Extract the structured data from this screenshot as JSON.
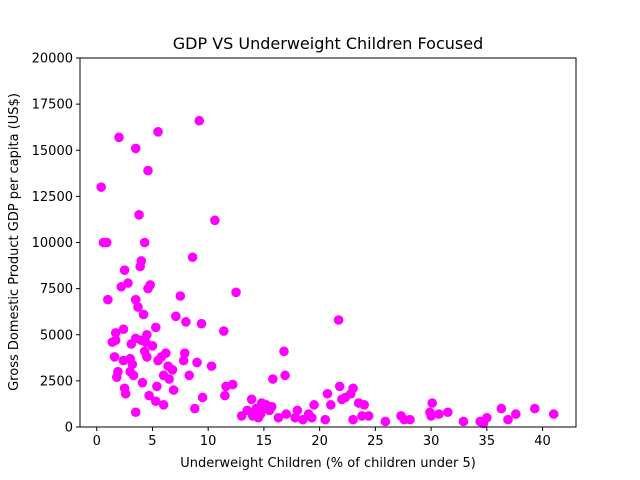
{
  "chart_data": {
    "type": "scatter",
    "title": "GDP VS Underweight Children Focused",
    "xlabel": "Underweight Children (% of children under 5)",
    "ylabel": "Gross Domestic Product GDP per capita (US$)",
    "xlim": [
      -1.5,
      43
    ],
    "ylim": [
      0,
      20000
    ],
    "xticks": [
      0,
      5,
      10,
      15,
      20,
      25,
      30,
      35,
      40
    ],
    "yticks": [
      0,
      2500,
      5000,
      7500,
      10000,
      12500,
      15000,
      17500,
      20000
    ],
    "xtick_labels": [
      "0",
      "5",
      "10",
      "15",
      "20",
      "25",
      "30",
      "35",
      "40"
    ],
    "ytick_labels": [
      "0",
      "2500",
      "5000",
      "7500",
      "10000",
      "12500",
      "15000",
      "17500",
      "20000"
    ],
    "marker_color": "#ff00ff",
    "grid": false,
    "points": [
      [
        0.4,
        13000
      ],
      [
        0.6,
        10000
      ],
      [
        0.9,
        10000
      ],
      [
        1.0,
        6900
      ],
      [
        1.4,
        4600
      ],
      [
        1.6,
        3800
      ],
      [
        1.7,
        5100
      ],
      [
        1.7,
        4700
      ],
      [
        1.8,
        2700
      ],
      [
        1.9,
        3000
      ],
      [
        2.0,
        15700
      ],
      [
        2.2,
        7600
      ],
      [
        2.4,
        5300
      ],
      [
        2.4,
        3600
      ],
      [
        2.5,
        8500
      ],
      [
        2.5,
        2100
      ],
      [
        2.6,
        1800
      ],
      [
        2.8,
        7800
      ],
      [
        3.0,
        3700
      ],
      [
        3.0,
        3000
      ],
      [
        3.1,
        4500
      ],
      [
        3.2,
        3400
      ],
      [
        3.3,
        2800
      ],
      [
        3.5,
        15100
      ],
      [
        3.5,
        6900
      ],
      [
        3.5,
        4800
      ],
      [
        3.5,
        800
      ],
      [
        3.7,
        6500
      ],
      [
        3.8,
        11500
      ],
      [
        3.9,
        8700
      ],
      [
        4.0,
        9000
      ],
      [
        4.0,
        4700
      ],
      [
        4.1,
        2400
      ],
      [
        4.2,
        6100
      ],
      [
        4.3,
        10000
      ],
      [
        4.3,
        4100
      ],
      [
        4.4,
        4600
      ],
      [
        4.5,
        5000
      ],
      [
        4.5,
        3800
      ],
      [
        4.6,
        13900
      ],
      [
        4.6,
        7500
      ],
      [
        4.7,
        1700
      ],
      [
        4.8,
        7700
      ],
      [
        5.0,
        4400
      ],
      [
        5.3,
        5400
      ],
      [
        5.3,
        1400
      ],
      [
        5.4,
        2200
      ],
      [
        5.5,
        16000
      ],
      [
        5.5,
        3600
      ],
      [
        5.8,
        3800
      ],
      [
        6.0,
        2800
      ],
      [
        6.0,
        1200
      ],
      [
        6.2,
        4000
      ],
      [
        6.4,
        3300
      ],
      [
        6.5,
        2600
      ],
      [
        6.8,
        3100
      ],
      [
        6.9,
        2000
      ],
      [
        7.1,
        6000
      ],
      [
        7.5,
        7100
      ],
      [
        7.8,
        3600
      ],
      [
        7.9,
        4000
      ],
      [
        8.0,
        5700
      ],
      [
        8.3,
        2800
      ],
      [
        8.6,
        9200
      ],
      [
        8.8,
        1000
      ],
      [
        9.0,
        3500
      ],
      [
        9.2,
        16600
      ],
      [
        9.4,
        5600
      ],
      [
        9.5,
        1600
      ],
      [
        10.3,
        3300
      ],
      [
        10.6,
        11200
      ],
      [
        11.4,
        5200
      ],
      [
        11.5,
        1700
      ],
      [
        11.6,
        2200
      ],
      [
        12.2,
        2300
      ],
      [
        12.5,
        7300
      ],
      [
        13.0,
        600
      ],
      [
        13.5,
        900
      ],
      [
        13.9,
        1500
      ],
      [
        14.0,
        600
      ],
      [
        14.3,
        1000
      ],
      [
        14.5,
        500
      ],
      [
        14.7,
        700
      ],
      [
        14.8,
        1300
      ],
      [
        15.0,
        1000
      ],
      [
        15.2,
        1200
      ],
      [
        15.5,
        900
      ],
      [
        15.7,
        1100
      ],
      [
        15.8,
        2600
      ],
      [
        16.3,
        500
      ],
      [
        16.8,
        4100
      ],
      [
        16.9,
        2800
      ],
      [
        17.0,
        700
      ],
      [
        17.8,
        500
      ],
      [
        18.0,
        900
      ],
      [
        18.5,
        400
      ],
      [
        19.0,
        700
      ],
      [
        19.3,
        500
      ],
      [
        19.5,
        1200
      ],
      [
        20.5,
        400
      ],
      [
        20.7,
        1800
      ],
      [
        21.0,
        1200
      ],
      [
        21.7,
        5800
      ],
      [
        21.8,
        2200
      ],
      [
        22.0,
        1500
      ],
      [
        22.3,
        1600
      ],
      [
        22.8,
        1800
      ],
      [
        23.0,
        2100
      ],
      [
        23.0,
        400
      ],
      [
        23.5,
        1300
      ],
      [
        23.8,
        600
      ],
      [
        24.0,
        1200
      ],
      [
        24.4,
        600
      ],
      [
        25.9,
        300
      ],
      [
        27.3,
        600
      ],
      [
        27.6,
        400
      ],
      [
        28.1,
        400
      ],
      [
        29.9,
        800
      ],
      [
        30.0,
        600
      ],
      [
        30.1,
        1300
      ],
      [
        30.7,
        700
      ],
      [
        31.5,
        800
      ],
      [
        32.9,
        300
      ],
      [
        34.4,
        300
      ],
      [
        34.7,
        200
      ],
      [
        35.0,
        500
      ],
      [
        36.3,
        1000
      ],
      [
        36.9,
        400
      ],
      [
        37.6,
        700
      ],
      [
        39.3,
        1000
      ],
      [
        41.0,
        700
      ]
    ]
  }
}
